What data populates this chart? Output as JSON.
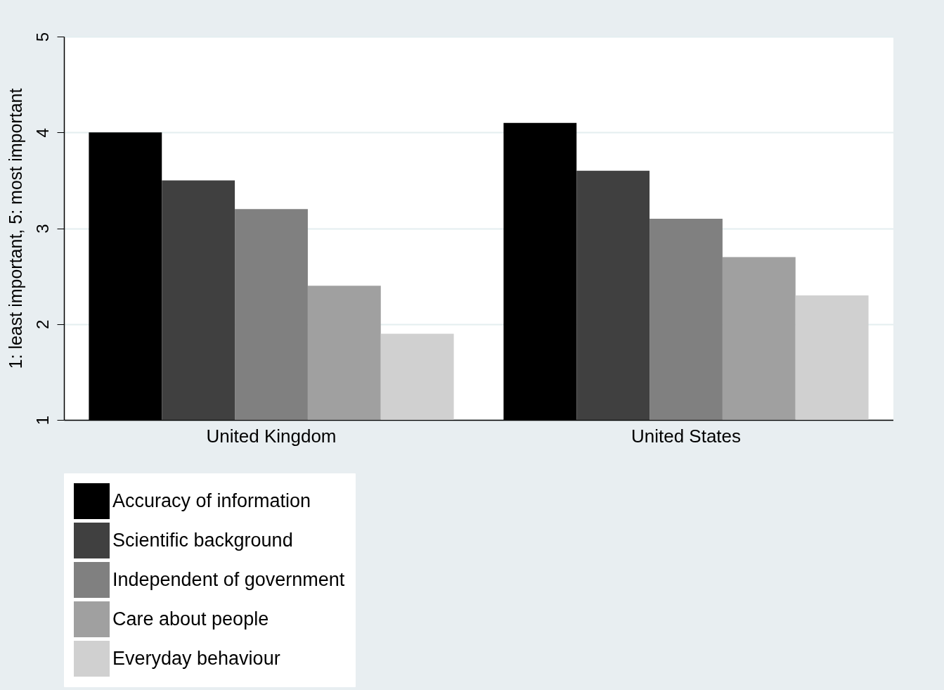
{
  "chart_data": {
    "type": "bar",
    "ylabel": "1: least important, 5: most important",
    "categories": [
      "United Kingdom",
      "United States"
    ],
    "series": [
      {
        "name": "Accuracy of information",
        "color": "#000000",
        "values": [
          4.0,
          4.1
        ]
      },
      {
        "name": "Scientific background",
        "color": "#404040",
        "values": [
          3.5,
          3.6
        ]
      },
      {
        "name": "Independent of government",
        "color": "#808080",
        "values": [
          3.2,
          3.1
        ]
      },
      {
        "name": "Care about people",
        "color": "#a0a0a0",
        "values": [
          2.4,
          2.7
        ]
      },
      {
        "name": "Everyday behaviour",
        "color": "#d0d0d0",
        "values": [
          1.9,
          2.3
        ]
      }
    ],
    "ylim": [
      1,
      5
    ],
    "yticks": [
      1,
      2,
      3,
      4,
      5
    ],
    "grid": "y",
    "legend": "bottom"
  }
}
